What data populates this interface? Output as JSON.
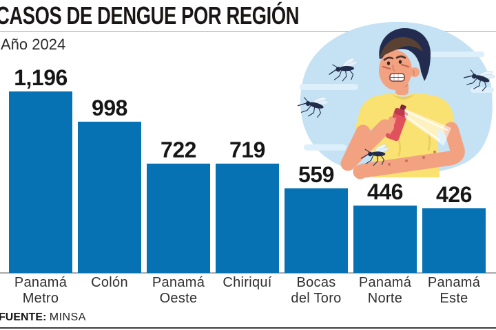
{
  "header": {
    "title": "CASOS DE DENGUE POR REGIÓN",
    "subtitle": "Año 2024"
  },
  "footer": {
    "source_label": "FUENTE:",
    "source_value": "MINSA"
  },
  "colors": {
    "bar": "#0672b4",
    "baseline": "#a8a8a8",
    "top_rule": "#b5b5b5",
    "bottom_rule": "#3a3a42",
    "title_text": "#1a1616",
    "illustration_blob": "#c4e2f3"
  },
  "chart_data": {
    "type": "bar",
    "title": "CASOS DE DENGUE POR REGIÓN",
    "subtitle": "Año 2024",
    "source": "FUENTE: MINSA",
    "categories": [
      "Panamá Metro",
      "Colón",
      "Panamá Oeste",
      "Chiriquí",
      "Bocas del Toro",
      "Panamá Norte",
      "Panamá Este"
    ],
    "category_lines": [
      [
        "Panamá",
        "Metro"
      ],
      [
        "Colón"
      ],
      [
        "Panamá",
        "Oeste"
      ],
      [
        "Chiriquí"
      ],
      [
        "Bocas",
        "del Toro"
      ],
      [
        "Panamá",
        "Norte"
      ],
      [
        "Panamá",
        "Este"
      ]
    ],
    "values": [
      1196,
      998,
      722,
      719,
      559,
      446,
      426
    ],
    "value_labels": [
      "1,196",
      "998",
      "722",
      "719",
      "559",
      "446",
      "426"
    ],
    "ylim": [
      0,
      1196
    ],
    "grid": false,
    "legend": false,
    "bar_color": "#0672b4",
    "orientation": "vertical",
    "value_label_position": "above-bar"
  },
  "illustration": {
    "alt": "Hombre preocupado aplicando repelente en aerosol sobre su brazo, rodeado de mosquitos"
  }
}
